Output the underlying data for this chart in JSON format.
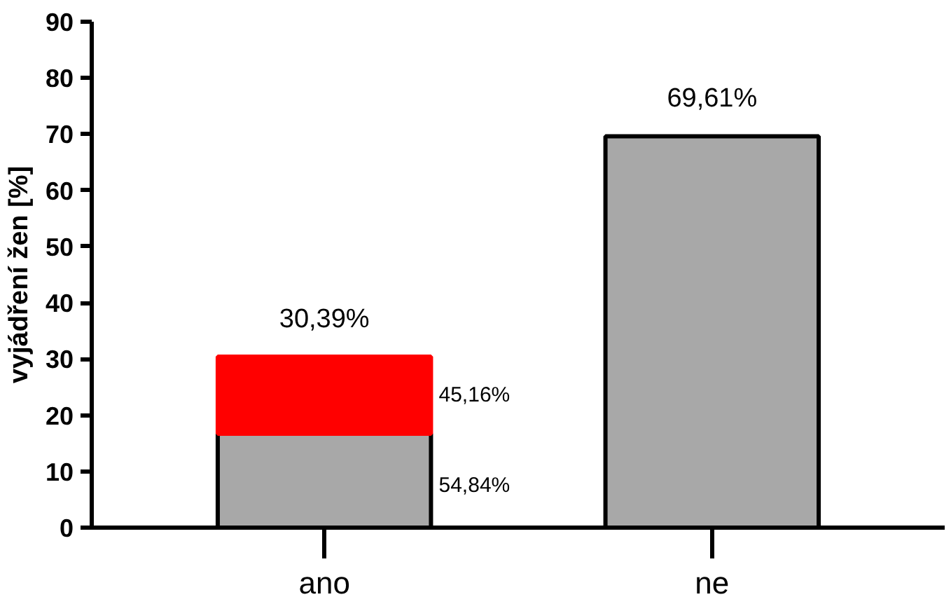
{
  "chart_data": {
    "type": "bar",
    "ylabel": "vyjádření žen [%]",
    "categories": [
      "ano",
      "ne"
    ],
    "stacked": true,
    "series": [
      {
        "color": "#a8a8a8",
        "values": [
          16.7,
          69.61
        ]
      },
      {
        "color": "#ff0000",
        "values": [
          13.7,
          null
        ]
      }
    ],
    "totals": [
      "30,39%",
      "69,61%"
    ],
    "annotations": [
      "45,16%",
      "54,84%"
    ],
    "ylim": [
      0,
      90
    ],
    "yticks": [
      0,
      10,
      20,
      30,
      40,
      50,
      60,
      70,
      80,
      90
    ],
    "grid": false
  }
}
